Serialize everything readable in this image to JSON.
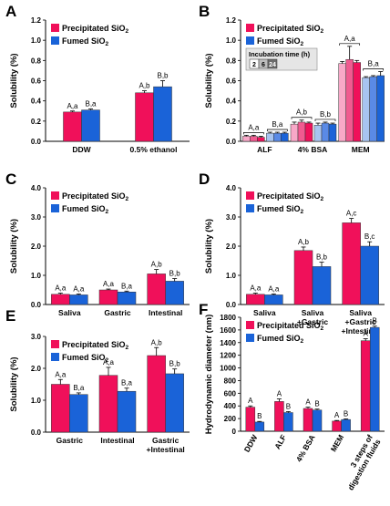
{
  "colors": {
    "precipitated": "#f0105a",
    "fumed": "#1a63d8",
    "precip_light": "#f8a8c8",
    "precip_mid": "#f05a90",
    "fumed_light": "#a8c4f0",
    "fumed_mid": "#5a8ae6"
  },
  "chart_data": [
    {
      "panel": "A",
      "type": "bar",
      "ylabel": "Solubility (%)",
      "ylim": [
        0,
        1.2
      ],
      "yticks": [
        "0.0",
        "0.2",
        "0.4",
        "0.6",
        "0.8",
        "1.0",
        "1.2"
      ],
      "categories": [
        "DDW",
        "0.5% ethanol"
      ],
      "series": [
        {
          "name": "Precipitated SiO2",
          "values": [
            0.29,
            0.48
          ],
          "errors": [
            0.01,
            0.02
          ],
          "labels": [
            "A,a",
            "A,b"
          ]
        },
        {
          "name": "Fumed SiO2",
          "values": [
            0.31,
            0.54
          ],
          "errors": [
            0.01,
            0.06
          ],
          "labels": [
            "B,a",
            "B,b"
          ]
        }
      ],
      "legend": "top-left"
    },
    {
      "panel": "B",
      "type": "bar",
      "ylabel": "Solubility (%)",
      "ylim": [
        0,
        1.2
      ],
      "yticks": [
        "0.0",
        "0.2",
        "0.4",
        "0.6",
        "0.8",
        "1.0",
        "1.2"
      ],
      "categories": [
        "ALF",
        "4% BSA",
        "MEM"
      ],
      "incubation_label": "Incubation time (h)",
      "incubation_times": [
        "2",
        "6",
        "24"
      ],
      "series": [
        {
          "name": "Precipitated SiO2 2 h",
          "values": [
            0.05,
            0.17,
            0.77
          ],
          "errors": [
            0.01,
            0.02,
            0.02
          ]
        },
        {
          "name": "Precipitated SiO2 6 h",
          "values": [
            0.05,
            0.19,
            0.81
          ],
          "errors": [
            0.01,
            0.02,
            0.13
          ]
        },
        {
          "name": "Precipitated SiO2 24 h",
          "values": [
            0.04,
            0.18,
            0.78
          ],
          "errors": [
            0.01,
            0.01,
            0.02
          ]
        },
        {
          "name": "Fumed SiO2 2 h",
          "values": [
            0.08,
            0.16,
            0.63
          ],
          "errors": [
            0.01,
            0.02,
            0.01
          ]
        },
        {
          "name": "Fumed SiO2 6 h",
          "values": [
            0.08,
            0.18,
            0.64
          ],
          "errors": [
            0.01,
            0.01,
            0.01
          ]
        },
        {
          "name": "Fumed SiO2 24 h",
          "values": [
            0.08,
            0.17,
            0.65
          ],
          "errors": [
            0.01,
            0.01,
            0.04
          ]
        }
      ],
      "group_labels": [
        [
          "A,a",
          "B,a"
        ],
        [
          "A,b",
          "B,b"
        ],
        [
          "A,a",
          "B,a"
        ]
      ],
      "legend": "top-left"
    },
    {
      "panel": "C",
      "type": "bar",
      "ylabel": "Solubility (%)",
      "ylim": [
        0,
        4.0
      ],
      "yticks": [
        "0.0",
        "1.0",
        "2.0",
        "3.0",
        "4.0"
      ],
      "categories": [
        "Saliva",
        "Gastric",
        "Intestinal"
      ],
      "series": [
        {
          "name": "Precipitated SiO2",
          "values": [
            0.35,
            0.5,
            1.05
          ],
          "errors": [
            0.04,
            0.03,
            0.15
          ],
          "labels": [
            "A,a",
            "A,a",
            "A,b"
          ]
        },
        {
          "name": "Fumed SiO2",
          "values": [
            0.33,
            0.43,
            0.8
          ],
          "errors": [
            0.03,
            0.03,
            0.09
          ],
          "labels": [
            "A,a",
            "B,a",
            "B,b"
          ]
        }
      ],
      "legend": "top-left"
    },
    {
      "panel": "D",
      "type": "bar",
      "ylabel": "Solubility (%)",
      "ylim": [
        0,
        4.0
      ],
      "yticks": [
        "0.0",
        "1.0",
        "2.0",
        "3.0",
        "4.0"
      ],
      "categories": [
        "Saliva",
        "Saliva\n+Gastric",
        "Saliva\n+Gastric\n+Intestinal"
      ],
      "series": [
        {
          "name": "Precipitated SiO2",
          "values": [
            0.35,
            1.85,
            2.8
          ],
          "errors": [
            0.04,
            0.12,
            0.15
          ],
          "labels": [
            "A,a",
            "A,b",
            "A,c"
          ]
        },
        {
          "name": "Fumed SiO2",
          "values": [
            0.33,
            1.3,
            2.0
          ],
          "errors": [
            0.03,
            0.15,
            0.15
          ],
          "labels": [
            "A,a",
            "B,b",
            "B,c"
          ]
        }
      ],
      "legend": "top-left"
    },
    {
      "panel": "E",
      "type": "bar",
      "ylabel": "Solubility (%)",
      "ylim": [
        0,
        3.0
      ],
      "yticks": [
        "0.0",
        "1.0",
        "2.0",
        "3.0"
      ],
      "categories": [
        "Gastric",
        "Intestinal",
        "Gastric\n+Intestinal"
      ],
      "series": [
        {
          "name": "Precipitated SiO2",
          "values": [
            1.5,
            1.78,
            2.4
          ],
          "errors": [
            0.15,
            0.25,
            0.25
          ],
          "labels": [
            "A,a",
            "A,a",
            "A,b"
          ]
        },
        {
          "name": "Fumed SiO2",
          "values": [
            1.18,
            1.28,
            1.83
          ],
          "errors": [
            0.05,
            0.1,
            0.15
          ],
          "labels": [
            "B,a",
            "B,a",
            "B,b"
          ]
        }
      ],
      "legend": "top-left"
    },
    {
      "panel": "F",
      "type": "bar",
      "ylabel": "Hydrodynamic diameter (nm)",
      "ylim": [
        0,
        1800
      ],
      "yticks": [
        "0",
        "200",
        "400",
        "600",
        "800",
        "1000",
        "1200",
        "1400",
        "1600",
        "1800"
      ],
      "categories": [
        "DDW",
        "ALF",
        "4% BSA",
        "MEM",
        "3 steps of\ndigestion fluids"
      ],
      "series": [
        {
          "name": "Precipitated SiO2",
          "values": [
            380,
            470,
            360,
            160,
            1430
          ],
          "errors": [
            20,
            40,
            20,
            10,
            30
          ],
          "labels": [
            "A",
            "A",
            "A",
            "A",
            "A"
          ]
        },
        {
          "name": "Fumed SiO2",
          "values": [
            145,
            295,
            335,
            185,
            1640
          ],
          "errors": [
            10,
            15,
            15,
            10,
            20
          ],
          "labels": [
            "B",
            "B",
            "B",
            "B",
            "B"
          ]
        }
      ],
      "legend": "top-left"
    }
  ]
}
